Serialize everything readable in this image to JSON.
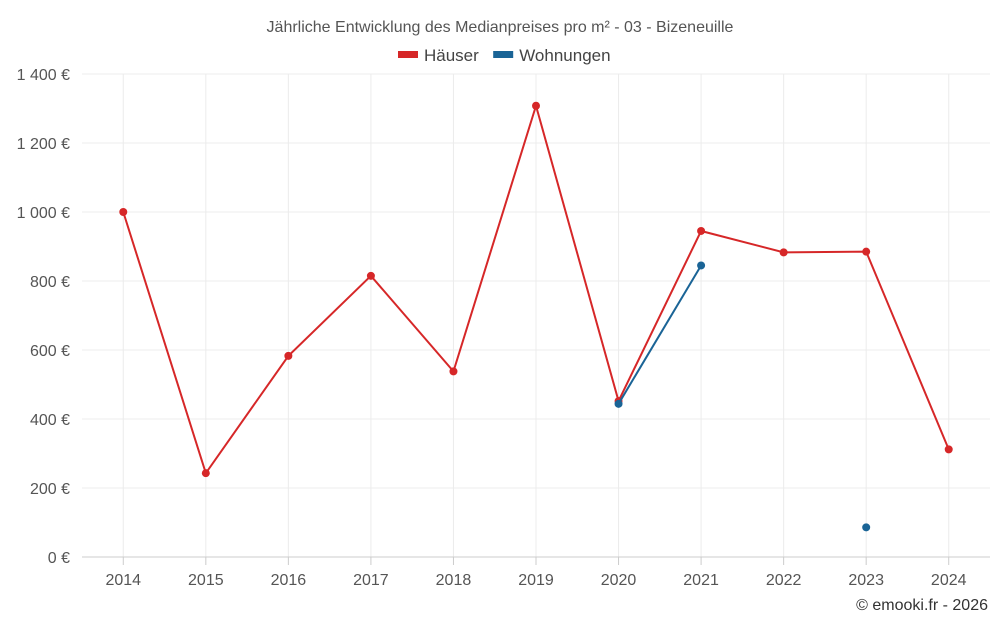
{
  "chart_data": {
    "type": "line",
    "title": "Jährliche Entwicklung des Medianpreises pro m² - 03 - Bizeneuille",
    "x": [
      "2014",
      "2015",
      "2016",
      "2017",
      "2018",
      "2019",
      "2020",
      "2021",
      "2022",
      "2023",
      "2024"
    ],
    "y_ticks": [
      "0 €",
      "200 €",
      "400 €",
      "600 €",
      "800 €",
      "1 000 €",
      "1 200 €",
      "1 400 €"
    ],
    "ylim": [
      0,
      1400
    ],
    "grid": true,
    "legend_position": "top-center",
    "series": [
      {
        "name": "Häuser",
        "color": "#d62728",
        "values": [
          1000,
          243,
          583,
          815,
          538,
          1308,
          452,
          945,
          883,
          885,
          312
        ]
      },
      {
        "name": "Wohnungen",
        "color": "#1a6496",
        "values": [
          null,
          null,
          null,
          null,
          null,
          null,
          444,
          845,
          null,
          86,
          null
        ]
      }
    ],
    "credit": "© emooki.fr - 2026"
  }
}
